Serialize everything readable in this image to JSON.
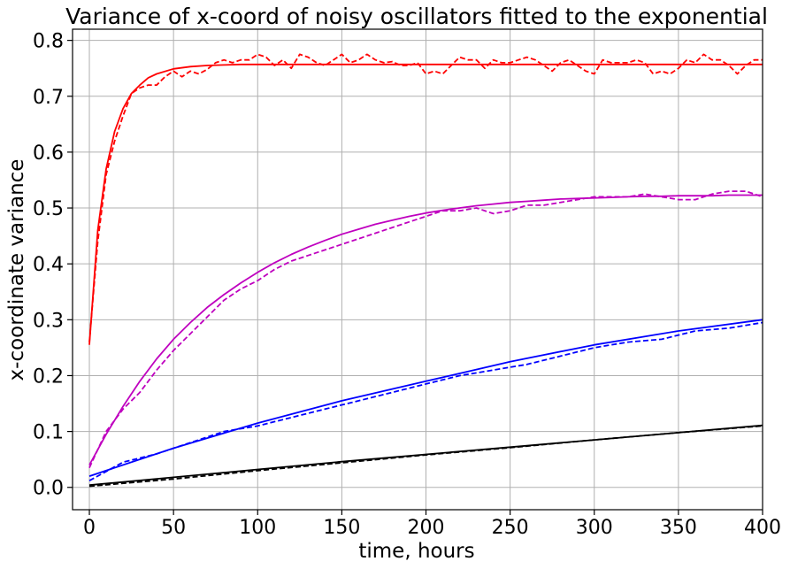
{
  "chart_data": {
    "type": "line",
    "title": "Variance of x-coord of noisy oscillators fitted to the exponential",
    "xlabel": "time, hours",
    "ylabel": "x-coordinate variance",
    "xlim": [
      -10,
      400
    ],
    "ylim": [
      -0.04,
      0.82
    ],
    "xticks": [
      "0",
      "50",
      "100",
      "150",
      "200",
      "250",
      "300",
      "350",
      "400"
    ],
    "yticks": [
      "0.0",
      "0.1",
      "0.2",
      "0.3",
      "0.4",
      "0.5",
      "0.6",
      "0.7",
      "0.8"
    ],
    "grid": true,
    "legend": null,
    "series": [
      {
        "color": "#ff0000",
        "style": "dashed",
        "x": [
          0,
          5,
          10,
          15,
          20,
          25,
          30,
          35,
          40,
          45,
          50,
          55,
          60,
          65,
          70,
          75,
          80,
          85,
          90,
          95,
          100,
          105,
          110,
          115,
          120,
          125,
          130,
          135,
          140,
          145,
          150,
          155,
          160,
          165,
          170,
          175,
          180,
          185,
          190,
          195,
          200,
          205,
          210,
          215,
          220,
          225,
          230,
          235,
          240,
          245,
          250,
          255,
          260,
          265,
          270,
          275,
          280,
          285,
          290,
          295,
          300,
          305,
          310,
          315,
          320,
          325,
          330,
          335,
          340,
          345,
          350,
          355,
          360,
          365,
          370,
          375,
          380,
          385,
          390,
          395,
          400
        ],
        "y": [
          0.26,
          0.44,
          0.56,
          0.62,
          0.665,
          0.705,
          0.715,
          0.72,
          0.72,
          0.735,
          0.745,
          0.735,
          0.745,
          0.74,
          0.748,
          0.76,
          0.765,
          0.76,
          0.765,
          0.765,
          0.775,
          0.77,
          0.755,
          0.765,
          0.75,
          0.775,
          0.77,
          0.76,
          0.755,
          0.765,
          0.775,
          0.76,
          0.765,
          0.775,
          0.765,
          0.76,
          0.762,
          0.755,
          0.755,
          0.76,
          0.74,
          0.745,
          0.74,
          0.755,
          0.77,
          0.765,
          0.765,
          0.75,
          0.765,
          0.76,
          0.76,
          0.765,
          0.77,
          0.765,
          0.755,
          0.745,
          0.76,
          0.765,
          0.755,
          0.745,
          0.74,
          0.765,
          0.76,
          0.76,
          0.76,
          0.765,
          0.76,
          0.74,
          0.745,
          0.74,
          0.75,
          0.765,
          0.76,
          0.775,
          0.765,
          0.765,
          0.755,
          0.74,
          0.755,
          0.765,
          0.765
        ]
      },
      {
        "color": "#ff0000",
        "style": "solid",
        "x": [
          0,
          5,
          10,
          15,
          20,
          25,
          30,
          35,
          40,
          50,
          60,
          70,
          80,
          90,
          100,
          125,
          150,
          200,
          250,
          300,
          350,
          400
        ],
        "y": [
          0.255,
          0.46,
          0.57,
          0.637,
          0.678,
          0.705,
          0.72,
          0.733,
          0.74,
          0.749,
          0.753,
          0.755,
          0.756,
          0.757,
          0.757,
          0.757,
          0.757,
          0.757,
          0.757,
          0.757,
          0.757,
          0.757
        ]
      },
      {
        "color": "#bf00bf",
        "style": "dashed",
        "x": [
          0,
          10,
          20,
          30,
          40,
          50,
          60,
          70,
          80,
          90,
          100,
          110,
          120,
          130,
          140,
          150,
          160,
          170,
          180,
          190,
          200,
          210,
          220,
          230,
          240,
          250,
          260,
          270,
          280,
          290,
          300,
          310,
          320,
          330,
          340,
          350,
          360,
          370,
          380,
          390,
          400
        ],
        "y": [
          0.035,
          0.1,
          0.14,
          0.17,
          0.21,
          0.245,
          0.275,
          0.305,
          0.335,
          0.355,
          0.37,
          0.39,
          0.405,
          0.415,
          0.425,
          0.435,
          0.445,
          0.455,
          0.465,
          0.475,
          0.485,
          0.495,
          0.495,
          0.5,
          0.49,
          0.495,
          0.505,
          0.505,
          0.51,
          0.515,
          0.52,
          0.52,
          0.52,
          0.525,
          0.52,
          0.515,
          0.515,
          0.525,
          0.53,
          0.53,
          0.52
        ]
      },
      {
        "color": "#bf00bf",
        "style": "solid",
        "x": [
          0,
          10,
          20,
          30,
          40,
          50,
          60,
          70,
          80,
          90,
          100,
          110,
          120,
          130,
          140,
          150,
          160,
          170,
          180,
          190,
          200,
          210,
          220,
          230,
          240,
          250,
          260,
          270,
          280,
          290,
          300,
          310,
          320,
          330,
          340,
          350,
          360,
          370,
          380,
          390,
          400
        ],
        "y": [
          0.04,
          0.095,
          0.145,
          0.19,
          0.23,
          0.265,
          0.295,
          0.322,
          0.345,
          0.366,
          0.385,
          0.402,
          0.417,
          0.43,
          0.442,
          0.453,
          0.462,
          0.471,
          0.478,
          0.485,
          0.491,
          0.496,
          0.5,
          0.504,
          0.507,
          0.51,
          0.512,
          0.514,
          0.516,
          0.517,
          0.518,
          0.519,
          0.52,
          0.521,
          0.521,
          0.522,
          0.522,
          0.522,
          0.523,
          0.523,
          0.523
        ]
      },
      {
        "color": "#0000ff",
        "style": "dashed",
        "x": [
          0,
          20,
          40,
          60,
          80,
          100,
          120,
          140,
          160,
          180,
          200,
          220,
          240,
          260,
          280,
          300,
          320,
          340,
          360,
          380,
          400
        ],
        "y": [
          0.012,
          0.045,
          0.06,
          0.08,
          0.1,
          0.11,
          0.125,
          0.14,
          0.155,
          0.17,
          0.185,
          0.2,
          0.21,
          0.22,
          0.235,
          0.25,
          0.26,
          0.265,
          0.28,
          0.285,
          0.295
        ]
      },
      {
        "color": "#0000ff",
        "style": "solid",
        "x": [
          0,
          50,
          100,
          150,
          200,
          250,
          300,
          350,
          400
        ],
        "y": [
          0.02,
          0.07,
          0.115,
          0.155,
          0.19,
          0.225,
          0.255,
          0.28,
          0.3
        ]
      },
      {
        "color": "#000000",
        "style": "dashed",
        "x": [
          0,
          50,
          100,
          150,
          200,
          250,
          300,
          350,
          400
        ],
        "y": [
          0.002,
          0.015,
          0.03,
          0.044,
          0.058,
          0.071,
          0.085,
          0.098,
          0.11
        ]
      },
      {
        "color": "#000000",
        "style": "solid",
        "x": [
          0,
          50,
          100,
          150,
          200,
          250,
          300,
          350,
          400
        ],
        "y": [
          0.004,
          0.018,
          0.032,
          0.046,
          0.059,
          0.072,
          0.085,
          0.098,
          0.111
        ]
      }
    ]
  }
}
